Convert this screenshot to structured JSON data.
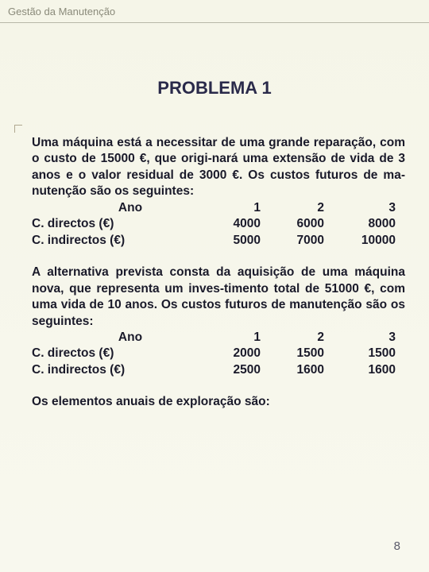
{
  "header": {
    "text": "Gestão da Manutenção"
  },
  "title": "PROBLEMA 1",
  "para1": "Uma máquina está a necessitar de uma grande reparação, com o custo de 15000 €, que origi-nará uma extensão de vida de 3 anos e o valor residual de 3000 €. Os custos futuros de ma-nutenção são os seguintes:",
  "table1": {
    "header_label": "Ano",
    "years": [
      "1",
      "2",
      "3"
    ],
    "rows": [
      {
        "label": "C. directos (€)",
        "vals": [
          "4000",
          "6000",
          "8000"
        ]
      },
      {
        "label": "C. indirectos (€)",
        "vals": [
          "5000",
          "7000",
          "10000"
        ]
      }
    ]
  },
  "para2": "A alternativa prevista consta da aquisição de uma máquina nova, que representa um inves-timento total de 51000 €, com uma vida de 10 anos. Os custos futuros de manutenção são os seguintes:",
  "table2": {
    "header_label": "Ano",
    "years": [
      "1",
      "2",
      "3"
    ],
    "rows": [
      {
        "label": "C. directos (€)",
        "vals": [
          "2000",
          "1500",
          "1500"
        ]
      },
      {
        "label": "C. indirectos (€)",
        "vals": [
          "2500",
          "1600",
          "1600"
        ]
      }
    ]
  },
  "para3": "Os elementos anuais de exploração são:",
  "page_number": "8"
}
